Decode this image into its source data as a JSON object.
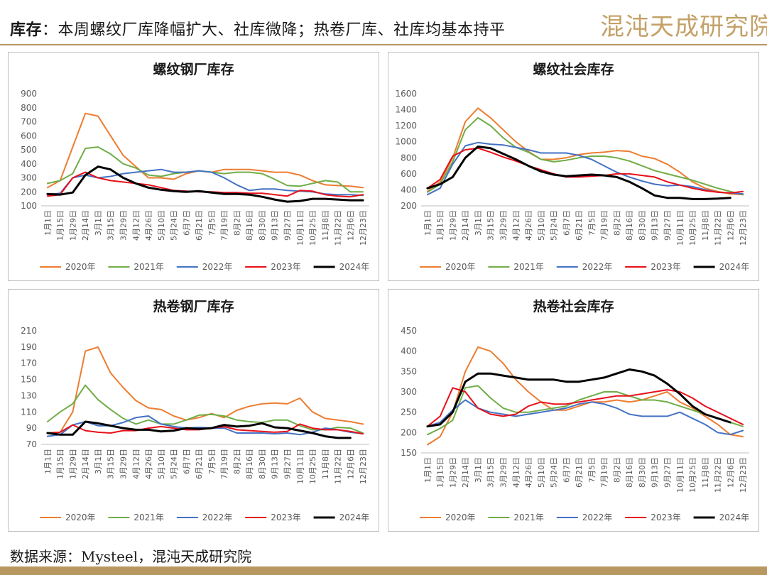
{
  "header": {
    "title_prefix": "库存",
    "title_text": "：本周螺纹厂库降幅扩大、社库微降；热卷厂库、社库均基本持平",
    "brand": "混沌天成研究院"
  },
  "footer": {
    "source": "数据来源：Mysteel，混沌天成研究院"
  },
  "colors": {
    "2020年": "#ed7d31",
    "2021年": "#70ad47",
    "2022年": "#4472c4",
    "2023年": "#e8101a",
    "2024年": "#000000",
    "accent": "#b99761"
  },
  "chart_data": [
    {
      "type": "line",
      "title": "螺纹钢厂库存",
      "x": [
        "1月1日",
        "1月15日",
        "1月29日",
        "2月14日",
        "3月1日",
        "3月15日",
        "3月29日",
        "4月12日",
        "4月26日",
        "5月10日",
        "5月24日",
        "6月7日",
        "6月21日",
        "7月5日",
        "7月19日",
        "8月2日",
        "8月16日",
        "8月30日",
        "9月13日",
        "9月27日",
        "10月11日",
        "10月25日",
        "11月8日",
        "11月22日",
        "12月6日",
        "12月23日"
      ],
      "ylim": [
        100,
        900
      ],
      "yticks": [
        100,
        200,
        300,
        400,
        500,
        600,
        700,
        800,
        900
      ],
      "legend": "bottom",
      "series": [
        {
          "name": "2020年",
          "values": [
            230,
            280,
            520,
            760,
            740,
            600,
            460,
            380,
            300,
            300,
            290,
            330,
            350,
            340,
            360,
            360,
            360,
            350,
            340,
            340,
            320,
            280,
            250,
            245,
            240,
            230
          ]
        },
        {
          "name": "2021年",
          "values": [
            260,
            280,
            330,
            510,
            520,
            470,
            400,
            370,
            320,
            310,
            330,
            340,
            350,
            340,
            330,
            340,
            340,
            330,
            290,
            245,
            240,
            260,
            280,
            270,
            200,
            200
          ]
        },
        {
          "name": "2022年",
          "values": [
            180,
            190,
            300,
            320,
            300,
            310,
            330,
            340,
            350,
            360,
            340,
            340,
            350,
            340,
            300,
            250,
            210,
            220,
            220,
            210,
            205,
            200,
            185,
            180,
            180,
            175
          ]
        },
        {
          "name": "2023年",
          "values": [
            170,
            180,
            300,
            340,
            300,
            280,
            270,
            260,
            250,
            230,
            210,
            205,
            200,
            200,
            195,
            195,
            190,
            190,
            180,
            170,
            210,
            205,
            180,
            170,
            165,
            180
          ]
        },
        {
          "name": "2024年",
          "values": [
            185,
            180,
            195,
            320,
            380,
            360,
            300,
            260,
            230,
            215,
            205,
            200,
            205,
            195,
            185,
            185,
            180,
            165,
            145,
            130,
            135,
            150,
            150,
            145,
            140,
            140
          ]
        }
      ]
    },
    {
      "type": "line",
      "title": "螺纹社会库存",
      "x": [
        "1月1日",
        "1月15日",
        "1月29日",
        "2月14日",
        "3月1日",
        "3月15日",
        "3月29日",
        "4月12日",
        "4月26日",
        "5月10日",
        "5月24日",
        "6月7日",
        "6月21日",
        "7月5日",
        "7月19日",
        "8月2日",
        "8月16日",
        "8月30日",
        "9月13日",
        "9月27日",
        "10月11日",
        "10月25日",
        "11月8日",
        "11月22日",
        "12月6日",
        "12月23日"
      ],
      "ylim": [
        200,
        1600
      ],
      "yticks": [
        200,
        400,
        600,
        800,
        1000,
        1200,
        1400,
        1600
      ],
      "legend": "bottom",
      "series": [
        {
          "name": "2020年",
          "values": [
            380,
            500,
            800,
            1250,
            1420,
            1300,
            1150,
            1000,
            880,
            780,
            780,
            800,
            840,
            860,
            870,
            890,
            880,
            820,
            790,
            720,
            620,
            500,
            420,
            380,
            350,
            340
          ]
        },
        {
          "name": "2021年",
          "values": [
            370,
            470,
            750,
            1150,
            1300,
            1200,
            1050,
            930,
            870,
            780,
            750,
            770,
            800,
            820,
            820,
            800,
            760,
            700,
            640,
            600,
            560,
            520,
            470,
            420,
            380,
            340
          ]
        },
        {
          "name": "2022年",
          "values": [
            340,
            420,
            720,
            950,
            990,
            970,
            960,
            930,
            900,
            860,
            860,
            860,
            830,
            780,
            700,
            620,
            560,
            510,
            470,
            450,
            460,
            440,
            400,
            370,
            360,
            350
          ]
        },
        {
          "name": "2023年",
          "values": [
            420,
            530,
            820,
            900,
            920,
            870,
            810,
            760,
            700,
            650,
            600,
            560,
            560,
            570,
            580,
            600,
            600,
            580,
            560,
            500,
            460,
            420,
            390,
            370,
            360,
            380
          ]
        },
        {
          "name": "2024年",
          "values": [
            420,
            470,
            560,
            800,
            940,
            920,
            850,
            780,
            700,
            630,
            590,
            570,
            580,
            590,
            580,
            560,
            500,
            420,
            330,
            300,
            300,
            285,
            285,
            290,
            300,
            null
          ]
        }
      ]
    },
    {
      "type": "line",
      "title": "热卷钢厂库存",
      "x": [
        "1月1日",
        "1月15日",
        "1月29日",
        "2月14日",
        "3月1日",
        "3月15日",
        "3月29日",
        "4月12日",
        "4月26日",
        "5月10日",
        "5月24日",
        "6月7日",
        "6月21日",
        "7月5日",
        "7月19日",
        "8月2日",
        "8月16日",
        "8月30日",
        "9月13日",
        "9月27日",
        "10月11日",
        "10月25日",
        "11月8日",
        "11月22日",
        "12月6日",
        "12月23日"
      ],
      "ylim": [
        70,
        210
      ],
      "yticks": [
        70,
        90,
        110,
        130,
        150,
        170,
        190,
        210
      ],
      "legend": "bottom",
      "series": [
        {
          "name": "2020年",
          "values": [
            84,
            85,
            110,
            185,
            190,
            158,
            140,
            124,
            115,
            113,
            105,
            100,
            103,
            108,
            103,
            112,
            117,
            120,
            121,
            120,
            127,
            110,
            102,
            100,
            98,
            95
          ]
        },
        {
          "name": "2021年",
          "values": [
            98,
            110,
            120,
            143,
            125,
            113,
            102,
            95,
            100,
            95,
            95,
            100,
            106,
            107,
            105,
            100,
            98,
            97,
            100,
            100,
            93,
            88,
            88,
            91,
            90,
            84
          ]
        },
        {
          "name": "2022年",
          "values": [
            80,
            82,
            94,
            98,
            93,
            93,
            97,
            103,
            105,
            95,
            92,
            90,
            91,
            90,
            90,
            84,
            84,
            84,
            83,
            84,
            82,
            85,
            90,
            88,
            85,
            83
          ]
        },
        {
          "name": "2023年",
          "values": [
            84,
            85,
            94,
            87,
            85,
            84,
            87,
            87,
            90,
            92,
            90,
            88,
            88,
            90,
            92,
            88,
            87,
            86,
            85,
            86,
            95,
            90,
            88,
            88,
            86,
            83
          ]
        },
        {
          "name": "2024年",
          "values": [
            84,
            82,
            82,
            98,
            96,
            93,
            90,
            88,
            88,
            86,
            87,
            90,
            89,
            90,
            94,
            92,
            93,
            96,
            91,
            90,
            87,
            84,
            80,
            78,
            78,
            null
          ]
        }
      ]
    },
    {
      "type": "line",
      "title": "热卷社会库存",
      "x": [
        "1月1日",
        "1月15日",
        "1月29日",
        "2月14日",
        "3月1日",
        "3月15日",
        "3月29日",
        "4月12日",
        "4月26日",
        "5月10日",
        "5月24日",
        "6月7日",
        "6月21日",
        "7月5日",
        "7月19日",
        "8月2日",
        "8月16日",
        "8月30日",
        "9月13日",
        "9月27日",
        "10月11日",
        "10月25日",
        "11月8日",
        "11月22日",
        "12月6日",
        "12月23日"
      ],
      "ylim": [
        150,
        450
      ],
      "yticks": [
        150,
        200,
        250,
        300,
        350,
        400,
        450
      ],
      "legend": "bottom",
      "series": [
        {
          "name": "2020年",
          "values": [
            170,
            190,
            250,
            350,
            410,
            400,
            370,
            330,
            300,
            275,
            255,
            255,
            265,
            275,
            275,
            280,
            275,
            280,
            290,
            300,
            275,
            260,
            240,
            220,
            195,
            190
          ]
        },
        {
          "name": "2021年",
          "values": [
            195,
            210,
            230,
            310,
            315,
            285,
            260,
            250,
            250,
            255,
            260,
            265,
            280,
            290,
            300,
            300,
            290,
            280,
            280,
            275,
            265,
            255,
            245,
            235,
            225,
            215
          ]
        },
        {
          "name": "2022年",
          "values": [
            215,
            225,
            255,
            280,
            260,
            250,
            245,
            240,
            245,
            250,
            255,
            260,
            270,
            275,
            270,
            260,
            245,
            240,
            240,
            240,
            250,
            235,
            220,
            200,
            195,
            205
          ]
        },
        {
          "name": "2023年",
          "values": [
            215,
            240,
            310,
            300,
            260,
            245,
            240,
            245,
            265,
            275,
            270,
            270,
            275,
            280,
            285,
            290,
            290,
            295,
            300,
            305,
            300,
            285,
            265,
            250,
            235,
            220
          ]
        },
        {
          "name": "2024年",
          "values": [
            215,
            220,
            250,
            325,
            345,
            345,
            340,
            335,
            330,
            330,
            330,
            325,
            325,
            330,
            335,
            345,
            355,
            350,
            340,
            320,
            295,
            265,
            245,
            235,
            225,
            null
          ]
        }
      ]
    }
  ]
}
